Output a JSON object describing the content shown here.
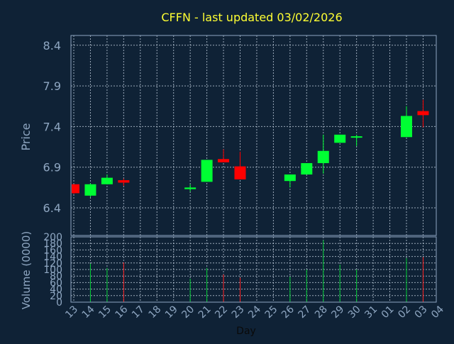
{
  "chart_data": {
    "type": "candlestick",
    "title": "CFFN - last updated 03/02/2026",
    "ylabel": "Price",
    "volume_ylabel": "Volume (0000)",
    "xlabel": "Day",
    "x_ticks": [
      "13",
      "14",
      "15",
      "16",
      "17",
      "18",
      "19",
      "20",
      "21",
      "22",
      "23",
      "24",
      "25",
      "26",
      "27",
      "28",
      "29",
      "30",
      "31",
      "01",
      "02",
      "03",
      "04"
    ],
    "price_ticks": [
      6.4,
      6.9,
      7.4,
      7.9,
      8.4
    ],
    "price_ylim": [
      6.06,
      8.52
    ],
    "volume_ticks": [
      0,
      20,
      40,
      60,
      80,
      100,
      120,
      140,
      160,
      180,
      200
    ],
    "volume_ylim": [
      0,
      200
    ],
    "grid": true,
    "colors": {
      "background": "#0f2236",
      "plot_border": "#8fa7c2",
      "grid": "#c9d6e5",
      "title": "#ffff33",
      "axis_text": "#8fa7c2",
      "up": "#00ff33",
      "down": "#ff0000",
      "volume_up": "#00cc33",
      "volume_down": "#ff2020"
    },
    "candles": [
      {
        "day": "13",
        "open": 6.69,
        "high": 6.69,
        "low": 6.57,
        "close": 6.58
      },
      {
        "day": "14",
        "open": 6.55,
        "high": 6.7,
        "low": 6.53,
        "close": 6.69
      },
      {
        "day": "15",
        "open": 6.69,
        "high": 6.81,
        "low": 6.69,
        "close": 6.77
      },
      {
        "day": "16",
        "open": 6.74,
        "high": 6.76,
        "low": 6.67,
        "close": 6.71
      },
      {
        "day": "20",
        "open": 6.63,
        "high": 6.69,
        "low": 6.6,
        "close": 6.65
      },
      {
        "day": "21",
        "open": 6.72,
        "high": 6.99,
        "low": 6.72,
        "close": 6.99
      },
      {
        "day": "22",
        "open": 7.0,
        "high": 7.12,
        "low": 6.97,
        "close": 6.96
      },
      {
        "day": "23",
        "open": 6.91,
        "high": 7.09,
        "low": 6.75,
        "close": 6.75
      },
      {
        "day": "26",
        "open": 6.73,
        "high": 6.81,
        "low": 6.65,
        "close": 6.81
      },
      {
        "day": "27",
        "open": 6.81,
        "high": 6.95,
        "low": 6.81,
        "close": 6.95
      },
      {
        "day": "28",
        "open": 6.95,
        "high": 7.3,
        "low": 6.82,
        "close": 7.1
      },
      {
        "day": "29",
        "open": 7.2,
        "high": 7.3,
        "low": 7.2,
        "close": 7.3
      },
      {
        "day": "30",
        "open": 7.27,
        "high": 7.3,
        "low": 7.16,
        "close": 7.28
      },
      {
        "day": "02",
        "open": 7.27,
        "high": 7.65,
        "low": 7.27,
        "close": 7.53
      },
      {
        "day": "03",
        "open": 7.59,
        "high": 7.73,
        "low": 7.39,
        "close": 7.54
      }
    ],
    "volume": [
      {
        "day": "14",
        "value": 118
      },
      {
        "day": "15",
        "value": 105
      },
      {
        "day": "16",
        "value": 122
      },
      {
        "day": "20",
        "value": 72
      },
      {
        "day": "21",
        "value": 105
      },
      {
        "day": "22",
        "value": 85
      },
      {
        "day": "23",
        "value": 75
      },
      {
        "day": "26",
        "value": 78
      },
      {
        "day": "27",
        "value": 100
      },
      {
        "day": "28",
        "value": 190
      },
      {
        "day": "29",
        "value": 115
      },
      {
        "day": "30",
        "value": 100
      },
      {
        "day": "02",
        "value": 135
      },
      {
        "day": "03",
        "value": 138
      }
    ]
  }
}
